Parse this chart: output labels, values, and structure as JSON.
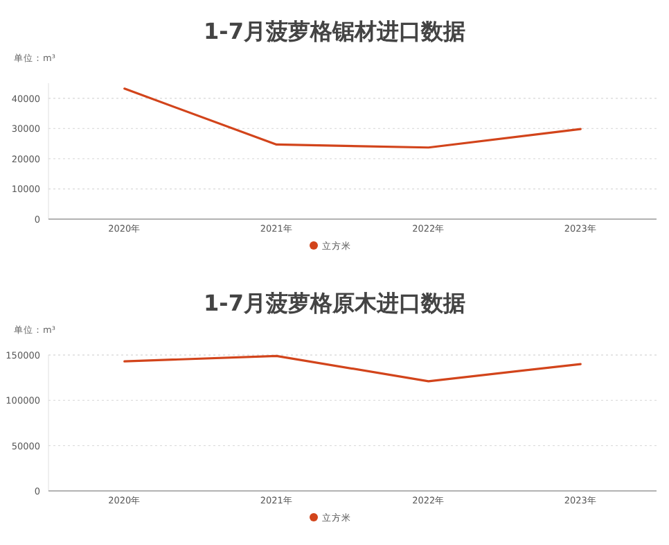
{
  "chart_data": [
    {
      "type": "line",
      "title": "1-7月菠萝格锯材进口数据",
      "subtitle": "单位：m³",
      "categories": [
        "2020年",
        "2021年",
        "2022年",
        "2023年"
      ],
      "series": [
        {
          "name": "立方米",
          "color": "#d2441b",
          "values": [
            43200,
            24700,
            23700,
            29800
          ]
        }
      ],
      "ylim": [
        0,
        45000
      ],
      "yticks": [
        0,
        10000,
        20000,
        30000,
        40000
      ],
      "grid": "y",
      "legend": "bottom",
      "marker": "none"
    },
    {
      "type": "line",
      "title": "1-7月菠萝格原木进口数据",
      "subtitle": "单位：m³",
      "categories": [
        "2020年",
        "2021年",
        "2022年",
        "2023年"
      ],
      "series": [
        {
          "name": "立方米",
          "color": "#d2441b",
          "values": [
            143000,
            149000,
            121000,
            140000
          ]
        }
      ],
      "ylim": [
        0,
        150000
      ],
      "yticks": [
        0,
        50000,
        100000,
        150000
      ],
      "grid": "y",
      "legend": "bottom",
      "marker": "none"
    }
  ]
}
